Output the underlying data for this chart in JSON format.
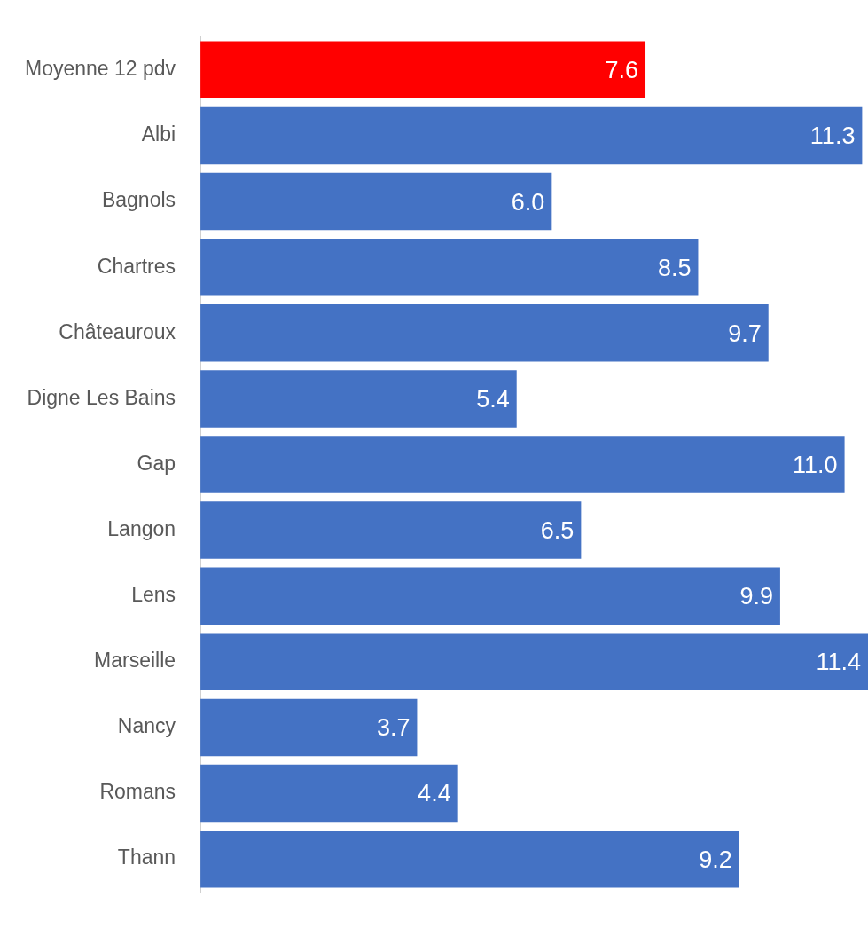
{
  "chart_data": {
    "type": "bar",
    "orientation": "horizontal",
    "categories": [
      "Moyenne 12 pdv",
      "Albi",
      "Bagnols",
      "Chartres",
      "Châteauroux",
      "Digne Les Bains",
      "Gap",
      "Langon",
      "Lens",
      "Marseille",
      "Nancy",
      "Romans",
      "Thann"
    ],
    "values": [
      7.6,
      11.3,
      6.0,
      8.5,
      9.7,
      5.4,
      11.0,
      6.5,
      9.9,
      11.4,
      3.7,
      4.4,
      9.2
    ],
    "colors": [
      "#ff0000",
      "#4472c4",
      "#4472c4",
      "#4472c4",
      "#4472c4",
      "#4472c4",
      "#4472c4",
      "#4472c4",
      "#4472c4",
      "#4472c4",
      "#4472c4",
      "#4472c4",
      "#4472c4"
    ],
    "value_labels": [
      "7.6",
      "11.3",
      "6.0",
      "8.5",
      "9.7",
      "5.4",
      "11.0",
      "6.5",
      "9.9",
      "11.4",
      "3.7",
      "4.4",
      "9.2"
    ],
    "legend": false
  }
}
